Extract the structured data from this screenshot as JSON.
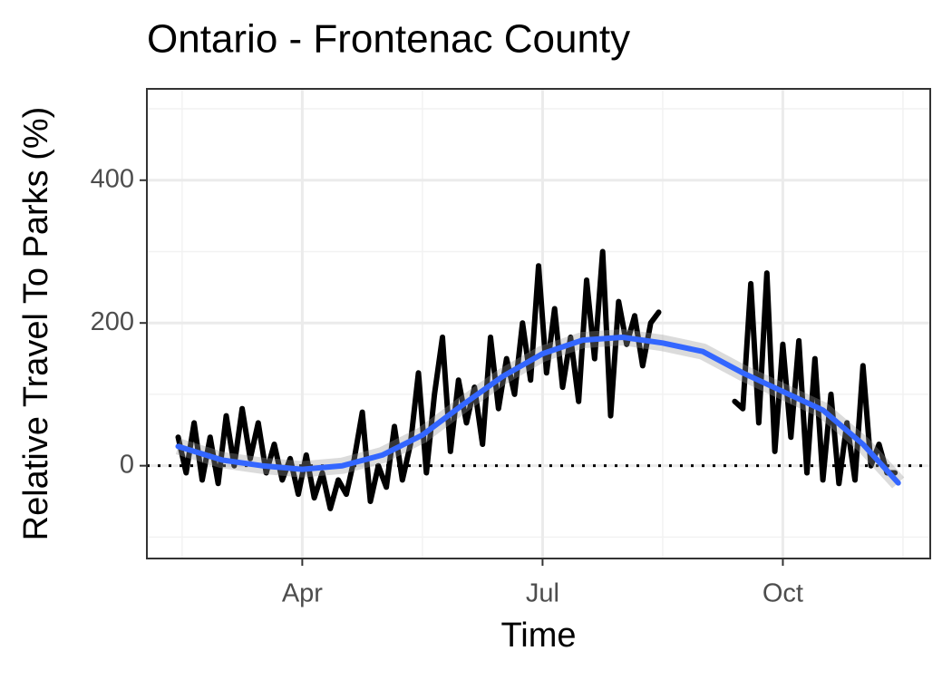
{
  "chart_data": {
    "type": "line",
    "title": "Ontario - Frontenac County",
    "x_label": "Time",
    "y_label": "Relative Travel To Parks (%)",
    "xlim": [
      2.06,
      11.84
    ],
    "xticks": [
      {
        "value": 4,
        "label": "Apr"
      },
      {
        "value": 7,
        "label": "Jul"
      },
      {
        "value": 10,
        "label": "Oct"
      }
    ],
    "ylim": [
      -130,
      528
    ],
    "yticks": [
      0,
      200,
      400
    ],
    "grid": true,
    "hline": 0,
    "series": [
      {
        "color": "#000000",
        "x": [
          2.45,
          2.55,
          2.65,
          2.75,
          2.85,
          2.95,
          3.05,
          3.15,
          3.25,
          3.35,
          3.45,
          3.55,
          3.65,
          3.75,
          3.85,
          3.95,
          4.05,
          4.15,
          4.25,
          4.35,
          4.45,
          4.55,
          4.65,
          4.75,
          4.85,
          4.95,
          5.05,
          5.15,
          5.25,
          5.35,
          5.45,
          5.55,
          5.65,
          5.75,
          5.85,
          5.95,
          6.05,
          6.15,
          6.25,
          6.35,
          6.45,
          6.55,
          6.65,
          6.75,
          6.85,
          6.95,
          7.05,
          7.15,
          7.25,
          7.35,
          7.45,
          7.55,
          7.65,
          7.75,
          7.85,
          7.95,
          8.05,
          8.15,
          8.25,
          8.35,
          8.45,
          8.9,
          9.4,
          9.5,
          9.6,
          9.7,
          9.8,
          9.9,
          10.0,
          10.1,
          10.2,
          10.3,
          10.4,
          10.5,
          10.6,
          10.7,
          10.8,
          10.9,
          11.0,
          11.1,
          11.2,
          11.3,
          11.4
        ],
        "values": [
          40,
          -10,
          60,
          -20,
          40,
          -25,
          70,
          0,
          80,
          10,
          60,
          -10,
          30,
          -20,
          10,
          -40,
          15,
          -45,
          -10,
          -60,
          -20,
          -40,
          10,
          75,
          -50,
          0,
          -30,
          55,
          -20,
          30,
          130,
          -10,
          100,
          180,
          20,
          120,
          60,
          110,
          30,
          180,
          80,
          150,
          100,
          200,
          120,
          280,
          130,
          220,
          110,
          180,
          90,
          260,
          150,
          300,
          70,
          230,
          170,
          210,
          140,
          200,
          215,
          null,
          90,
          80,
          255,
          60,
          270,
          20,
          170,
          40,
          175,
          -10,
          150,
          -20,
          100,
          -25,
          60,
          -20,
          140,
          0,
          30,
          -10,
          -10
        ]
      },
      {
        "color": "#3366ff",
        "x": [
          2.45,
          3,
          3.5,
          4,
          4.5,
          5,
          5.5,
          6,
          6.5,
          7,
          7.5,
          8,
          8.5,
          9,
          9.5,
          10,
          10.5,
          11,
          11.44
        ],
        "values": [
          27,
          8,
          0,
          -5,
          0,
          15,
          43,
          85,
          125,
          157,
          176,
          180,
          172,
          160,
          130,
          104,
          78,
          30,
          -24
        ]
      }
    ]
  }
}
